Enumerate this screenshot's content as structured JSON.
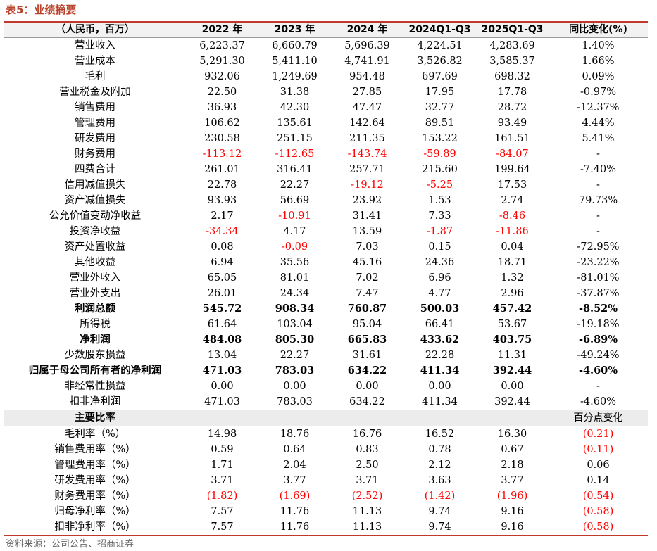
{
  "title": "表5：业绩摘要",
  "header": [
    "（人民币，百万）",
    "2022 年",
    "2023 年",
    "2024 年",
    "2024Q1-Q3",
    "2025Q1-Q3",
    "同比变化(%)"
  ],
  "rows": [
    {
      "label": "营业收入",
      "values": [
        "6,223.37",
        "6,660.79",
        "5,696.39",
        "4,224.51",
        "4,283.69",
        "1.40%"
      ],
      "bold": false
    },
    {
      "label": "营业成本",
      "values": [
        "5,291.30",
        "5,411.10",
        "4,741.91",
        "3,526.82",
        "3,585.37",
        "1.66%"
      ],
      "bold": false
    },
    {
      "label": "毛利",
      "values": [
        "932.06",
        "1,249.69",
        "954.48",
        "697.69",
        "698.32",
        "0.09%"
      ],
      "bold": false
    },
    {
      "label": "营业税金及附加",
      "values": [
        "22.50",
        "31.38",
        "27.85",
        "17.95",
        "17.78",
        "-0.97%"
      ],
      "bold": false
    },
    {
      "label": "销售费用",
      "values": [
        "36.93",
        "42.30",
        "47.47",
        "32.77",
        "28.72",
        "-12.37%"
      ],
      "bold": false
    },
    {
      "label": "管理费用",
      "values": [
        "106.62",
        "135.61",
        "142.64",
        "89.51",
        "93.49",
        "4.44%"
      ],
      "bold": false
    },
    {
      "label": "研发费用",
      "values": [
        "230.58",
        "251.15",
        "211.35",
        "153.22",
        "161.51",
        "5.41%"
      ],
      "bold": false
    },
    {
      "label": "财务费用",
      "values": [
        "-113.12",
        "-112.65",
        "-143.74",
        "-59.89",
        "-84.07",
        "-"
      ],
      "bold": false,
      "red": [
        0,
        1,
        2,
        3,
        4
      ]
    },
    {
      "label": "四费合计",
      "values": [
        "261.01",
        "316.41",
        "257.71",
        "215.60",
        "199.64",
        "-7.40%"
      ],
      "bold": false
    },
    {
      "label": "信用减值损失",
      "values": [
        "22.78",
        "22.27",
        "-19.12",
        "-5.25",
        "17.53",
        "-"
      ],
      "bold": false,
      "red": [
        2,
        3
      ]
    },
    {
      "label": "资产减值损失",
      "values": [
        "93.93",
        "56.69",
        "23.92",
        "1.53",
        "2.74",
        "79.73%"
      ],
      "bold": false
    },
    {
      "label": "公允价值变动净收益",
      "values": [
        "2.17",
        "-10.91",
        "31.41",
        "7.33",
        "-8.46",
        "-"
      ],
      "bold": false,
      "red": [
        1,
        4
      ]
    },
    {
      "label": "投资净收益",
      "values": [
        "-34.34",
        "4.17",
        "13.59",
        "-1.87",
        "-11.86",
        "-"
      ],
      "bold": false,
      "red": [
        0,
        3,
        4
      ]
    },
    {
      "label": "资产处置收益",
      "values": [
        "0.08",
        "-0.09",
        "7.03",
        "0.15",
        "0.04",
        "-72.95%"
      ],
      "bold": false,
      "red": [
        1
      ]
    },
    {
      "label": "其他收益",
      "values": [
        "6.94",
        "35.56",
        "45.16",
        "24.36",
        "18.71",
        "-23.22%"
      ],
      "bold": false
    },
    {
      "label": "营业外收入",
      "values": [
        "65.05",
        "81.01",
        "7.02",
        "6.96",
        "1.32",
        "-81.01%"
      ],
      "bold": false
    },
    {
      "label": "营业外支出",
      "values": [
        "26.01",
        "24.34",
        "7.47",
        "4.77",
        "2.96",
        "-37.87%"
      ],
      "bold": false
    },
    {
      "label": "利润总额",
      "values": [
        "545.72",
        "908.34",
        "760.87",
        "500.03",
        "457.42",
        "-8.52%"
      ],
      "bold": true
    },
    {
      "label": "所得税",
      "values": [
        "61.64",
        "103.04",
        "95.04",
        "66.41",
        "53.67",
        "-19.18%"
      ],
      "bold": false
    },
    {
      "label": "净利润",
      "values": [
        "484.08",
        "805.30",
        "665.83",
        "433.62",
        "403.75",
        "-6.89%"
      ],
      "bold": true
    },
    {
      "label": "少数股东损益",
      "values": [
        "13.04",
        "22.27",
        "31.61",
        "22.28",
        "11.31",
        "-49.24%"
      ],
      "bold": false
    },
    {
      "label": "归属于母公司所有者的净利润",
      "values": [
        "471.03",
        "783.03",
        "634.22",
        "411.34",
        "392.44",
        "-4.60%"
      ],
      "bold": true
    },
    {
      "label": "非经常性损益",
      "values": [
        "0.00",
        "0.00",
        "0.00",
        "0.00",
        "0.00",
        "-"
      ],
      "bold": false
    },
    {
      "label": "扣非净利润",
      "values": [
        "471.03",
        "783.03",
        "634.22",
        "411.34",
        "392.44",
        "-4.60%"
      ],
      "bold": false
    }
  ],
  "ratio_header": {
    "label": "主要比率",
    "change": "百分点变化"
  },
  "ratio_rows": [
    {
      "label": "毛利率（%）",
      "values": [
        "14.98",
        "18.76",
        "16.76",
        "16.52",
        "16.30",
        "(0.21)"
      ],
      "red": [
        5
      ]
    },
    {
      "label": "销售费用率（%）",
      "values": [
        "0.59",
        "0.64",
        "0.83",
        "0.78",
        "0.67",
        "(0.11)"
      ],
      "red": [
        5
      ]
    },
    {
      "label": "管理费用率（%）",
      "values": [
        "1.71",
        "2.04",
        "2.50",
        "2.12",
        "2.18",
        "0.06"
      ],
      "red": []
    },
    {
      "label": "研发费用率（%）",
      "values": [
        "3.71",
        "3.77",
        "3.71",
        "3.63",
        "3.77",
        "0.14"
      ],
      "red": []
    },
    {
      "label": "财务费用率（%）",
      "values": [
        "(1.82)",
        "(1.69)",
        "(2.52)",
        "(1.42)",
        "(1.96)",
        "(0.54)"
      ],
      "red": [
        0,
        1,
        2,
        3,
        4,
        5
      ]
    },
    {
      "label": "归母净利率（%）",
      "values": [
        "7.57",
        "11.76",
        "11.13",
        "9.74",
        "9.16",
        "(0.58)"
      ],
      "red": [
        5
      ]
    },
    {
      "label": "扣非净利率（%）",
      "values": [
        "7.57",
        "11.76",
        "11.13",
        "9.74",
        "9.16",
        "(0.58)"
      ],
      "red": [
        5
      ]
    }
  ],
  "source": "资料来源：公司公告、招商证券"
}
